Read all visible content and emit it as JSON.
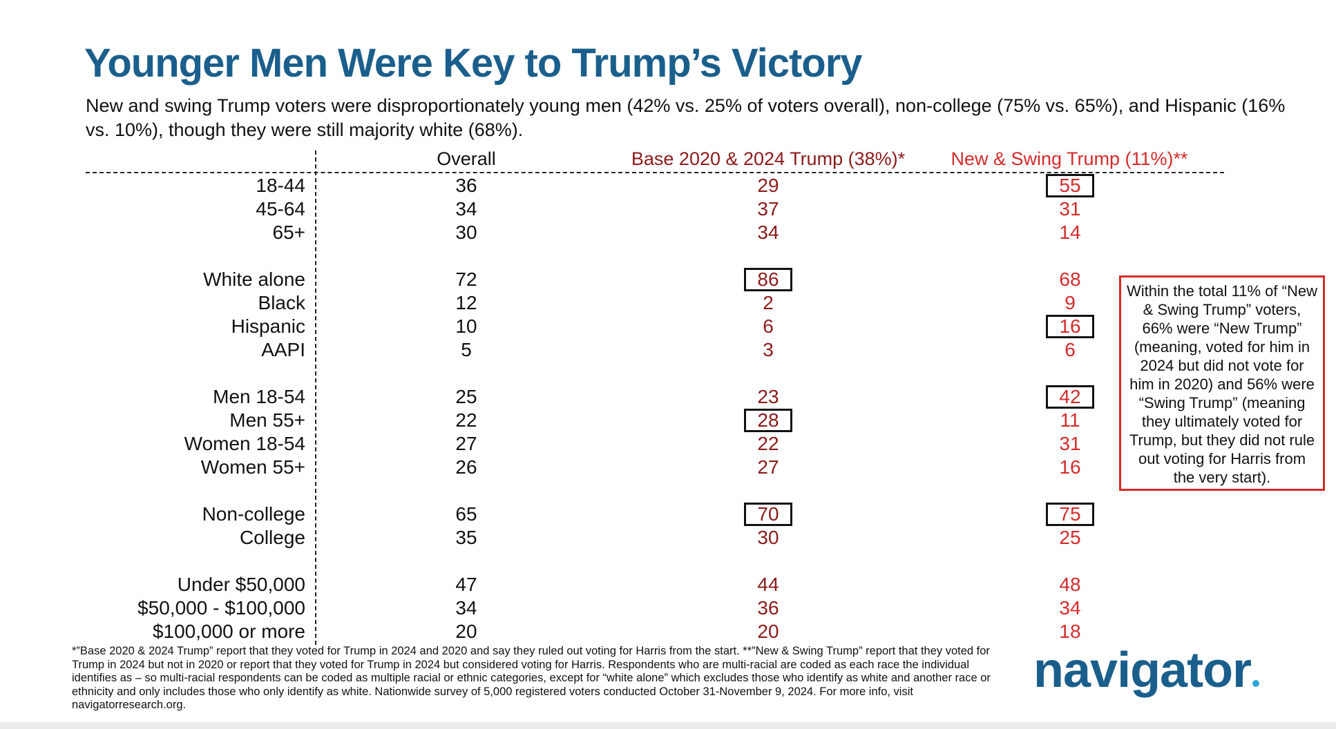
{
  "title": "Younger Men Were Key to Trump’s Victory",
  "subtitle": "New and swing Trump voters were disproportionately young men (42% vs. 25% of voters overall), non-college (75% vs. 65%), and Hispanic (16% vs. 10%), though they were still majority white (68%).",
  "columns": {
    "overall": "Overall",
    "base": "Base 2020 & 2024 Trump (38%)*",
    "swing": "New & Swing Trump (11%)**"
  },
  "rows": [
    {
      "label": "18-44",
      "overall": "36",
      "base": "29",
      "swing": "55",
      "base_boxed": false,
      "swing_boxed": true
    },
    {
      "label": "45-64",
      "overall": "34",
      "base": "37",
      "swing": "31",
      "base_boxed": false,
      "swing_boxed": false
    },
    {
      "label": "65+",
      "overall": "30",
      "base": "34",
      "swing": "14",
      "base_boxed": false,
      "swing_boxed": false
    },
    {
      "label": "White alone",
      "overall": "72",
      "base": "86",
      "swing": "68",
      "base_boxed": true,
      "swing_boxed": false
    },
    {
      "label": "Black",
      "overall": "12",
      "base": "2",
      "swing": "9",
      "base_boxed": false,
      "swing_boxed": false
    },
    {
      "label": "Hispanic",
      "overall": "10",
      "base": "6",
      "swing": "16",
      "base_boxed": false,
      "swing_boxed": true
    },
    {
      "label": "AAPI",
      "overall": "5",
      "base": "3",
      "swing": "6",
      "base_boxed": false,
      "swing_boxed": false
    },
    {
      "label": "Men 18-54",
      "overall": "25",
      "base": "23",
      "swing": "42",
      "base_boxed": false,
      "swing_boxed": true
    },
    {
      "label": "Men 55+",
      "overall": "22",
      "base": "28",
      "swing": "11",
      "base_boxed": true,
      "swing_boxed": false
    },
    {
      "label": "Women 18-54",
      "overall": "27",
      "base": "22",
      "swing": "31",
      "base_boxed": false,
      "swing_boxed": false
    },
    {
      "label": "Women 55+",
      "overall": "26",
      "base": "27",
      "swing": "16",
      "base_boxed": false,
      "swing_boxed": false
    },
    {
      "label": "Non-college",
      "overall": "65",
      "base": "70",
      "swing": "75",
      "base_boxed": true,
      "swing_boxed": true
    },
    {
      "label": "College",
      "overall": "35",
      "base": "30",
      "swing": "25",
      "base_boxed": false,
      "swing_boxed": false
    },
    {
      "label": "Under $50,000",
      "overall": "47",
      "base": "44",
      "swing": "48",
      "base_boxed": false,
      "swing_boxed": false
    },
    {
      "label": "$50,000 - $100,000",
      "overall": "34",
      "base": "36",
      "swing": "34",
      "base_boxed": false,
      "swing_boxed": false
    },
    {
      "label": "$100,000 or more",
      "overall": "20",
      "base": "20",
      "swing": "18",
      "base_boxed": false,
      "swing_boxed": false
    }
  ],
  "callout": "Within the total 11% of “New & Swing Trump” voters, 66% were “New Trump” (meaning, voted for him in 2024 but did not vote for him in 2020) and 56% were “Swing Trump” (meaning they ultimately voted for Trump, but they did not rule out voting for Harris from the very start).",
  "footnote": "*”Base 2020 & 2024 Trump” report that they voted for Trump in 2024 and 2020 and say they ruled out voting for Harris from the start. **”New & Swing Trump” report that they voted for Trump in 2024 but not in 2020 or report that they voted for Trump in 2024 but considered voting for Harris. Respondents who are multi-racial are coded as each race the individual identifies as – so multi-racial respondents can be coded as multiple racial or ethnic categories, except for “white alone” which excludes those who identify as white and another race or ethnicity and only includes those who only identify as white. Nationwide survey of 5,000 registered voters conducted October 31-November 9, 2024. For more info, visit navigatorresearch.org.",
  "logo": "navigator",
  "colors": {
    "title": "#1a5f8c",
    "base": "#8b1a1a",
    "swing": "#d42a2a",
    "logo_dot": "#2aa8d8"
  }
}
